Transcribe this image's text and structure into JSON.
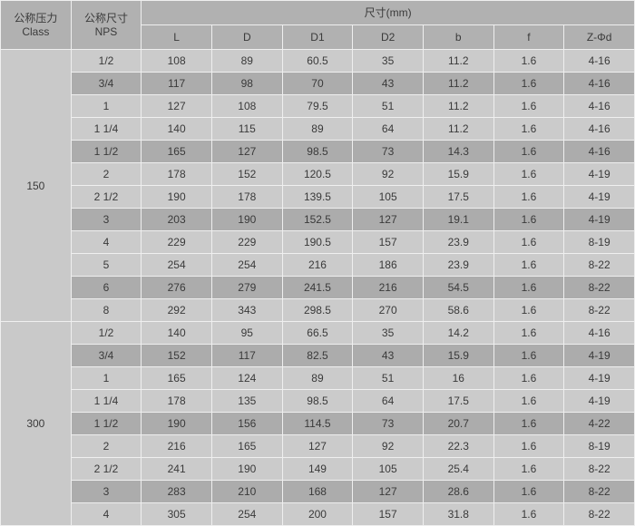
{
  "colors": {
    "header_bg": "#b1b1b1",
    "row_light": "#cbcbcb",
    "row_dark": "#acacac",
    "class_cell_bg": "#c9c9c9",
    "border": "#efefef",
    "text": "#3a3a3a"
  },
  "table": {
    "header": {
      "pressure_line1": "公称压力",
      "pressure_line2": "Class",
      "size_line1": "公称尺寸",
      "size_line2": "NPS",
      "dims_group_label": "尺寸(mm)",
      "dim_columns": [
        "L",
        "D",
        "D1",
        "D2",
        "b",
        "f",
        "Z-Φd"
      ]
    },
    "groups": [
      {
        "class_label": "150",
        "rows": [
          {
            "nps": "1/2",
            "values": [
              "108",
              "89",
              "60.5",
              "35",
              "11.2",
              "1.6",
              "4-16"
            ]
          },
          {
            "nps": "3/4",
            "values": [
              "117",
              "98",
              "70",
              "43",
              "11.2",
              "1.6",
              "4-16"
            ]
          },
          {
            "nps": "1",
            "values": [
              "127",
              "108",
              "79.5",
              "51",
              "11.2",
              "1.6",
              "4-16"
            ]
          },
          {
            "nps": "1 1/4",
            "values": [
              "140",
              "115",
              "89",
              "64",
              "11.2",
              "1.6",
              "4-16"
            ]
          },
          {
            "nps": "1 1/2",
            "values": [
              "165",
              "127",
              "98.5",
              "73",
              "14.3",
              "1.6",
              "4-16"
            ]
          },
          {
            "nps": "2",
            "values": [
              "178",
              "152",
              "120.5",
              "92",
              "15.9",
              "1.6",
              "4-19"
            ]
          },
          {
            "nps": "2 1/2",
            "values": [
              "190",
              "178",
              "139.5",
              "105",
              "17.5",
              "1.6",
              "4-19"
            ]
          },
          {
            "nps": "3",
            "values": [
              "203",
              "190",
              "152.5",
              "127",
              "19.1",
              "1.6",
              "4-19"
            ]
          },
          {
            "nps": "4",
            "values": [
              "229",
              "229",
              "190.5",
              "157",
              "23.9",
              "1.6",
              "8-19"
            ]
          },
          {
            "nps": "5",
            "values": [
              "254",
              "254",
              "216",
              "186",
              "23.9",
              "1.6",
              "8-22"
            ]
          },
          {
            "nps": "6",
            "values": [
              "276",
              "279",
              "241.5",
              "216",
              "54.5",
              "1.6",
              "8-22"
            ]
          },
          {
            "nps": "8",
            "values": [
              "292",
              "343",
              "298.5",
              "270",
              "58.6",
              "1.6",
              "8-22"
            ]
          }
        ]
      },
      {
        "class_label": "300",
        "rows": [
          {
            "nps": "1/2",
            "values": [
              "140",
              "95",
              "66.5",
              "35",
              "14.2",
              "1.6",
              "4-16"
            ]
          },
          {
            "nps": "3/4",
            "values": [
              "152",
              "117",
              "82.5",
              "43",
              "15.9",
              "1.6",
              "4-19"
            ]
          },
          {
            "nps": "1",
            "values": [
              "165",
              "124",
              "89",
              "51",
              "16",
              "1.6",
              "4-19"
            ]
          },
          {
            "nps": "1 1/4",
            "values": [
              "178",
              "135",
              "98.5",
              "64",
              "17.5",
              "1.6",
              "4-19"
            ]
          },
          {
            "nps": "1 1/2",
            "values": [
              "190",
              "156",
              "114.5",
              "73",
              "20.7",
              "1.6",
              "4-22"
            ]
          },
          {
            "nps": "2",
            "values": [
              "216",
              "165",
              "127",
              "92",
              "22.3",
              "1.6",
              "8-19"
            ]
          },
          {
            "nps": "2 1/2",
            "values": [
              "241",
              "190",
              "149",
              "105",
              "25.4",
              "1.6",
              "8-22"
            ]
          },
          {
            "nps": "3",
            "values": [
              "283",
              "210",
              "168",
              "127",
              "28.6",
              "1.6",
              "8-22"
            ]
          },
          {
            "nps": "4",
            "values": [
              "305",
              "254",
              "200",
              "157",
              "31.8",
              "1.6",
              "8-22"
            ]
          }
        ]
      }
    ]
  }
}
